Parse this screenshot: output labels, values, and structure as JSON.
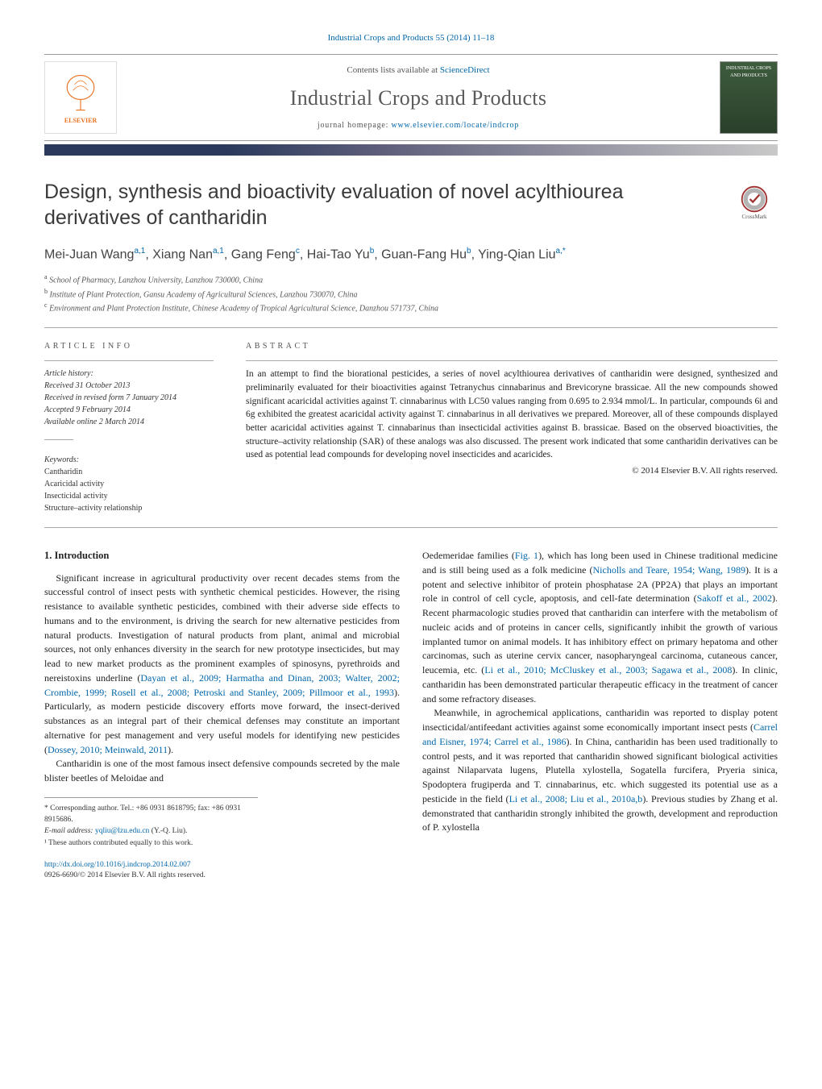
{
  "header": {
    "citation": "Industrial Crops and Products 55 (2014) 11–18",
    "contents_prefix": "Contents lists available at ",
    "contents_link": "ScienceDirect",
    "journal_name": "Industrial Crops and Products",
    "homepage_prefix": "journal homepage: ",
    "homepage_url": "www.elsevier.com/locate/indcrop",
    "publisher": "ELSEVIER",
    "cover_text": "INDUSTRIAL CROPS AND PRODUCTS"
  },
  "title": "Design, synthesis and bioactivity evaluation of novel acylthiourea derivatives of cantharidin",
  "crossmark_label": "CrossMark",
  "authors_html": "Mei-Juan Wang<sup>a,1</sup>, Xiang Nan<sup>a,1</sup>, Gang Feng<sup>c</sup>, Hai-Tao Yu<sup>b</sup>, Guan-Fang Hu<sup>b</sup>, Ying-Qian Liu<sup>a,*</sup>",
  "affiliations": {
    "a": "School of Pharmacy, Lanzhou University, Lanzhou 730000, China",
    "b": "Institute of Plant Protection, Gansu Academy of Agricultural Sciences, Lanzhou 730070, China",
    "c": "Environment and Plant Protection Institute, Chinese Academy of Tropical Agricultural Science, Danzhou 571737, China"
  },
  "article_info": {
    "label": "ARTICLE INFO",
    "history_label": "Article history:",
    "received": "Received 31 October 2013",
    "revised": "Received in revised form 7 January 2014",
    "accepted": "Accepted 9 February 2014",
    "online": "Available online 2 March 2014",
    "keywords_label": "Keywords:",
    "keywords": [
      "Cantharidin",
      "Acaricidal activity",
      "Insecticidal activity",
      "Structure–activity relationship"
    ]
  },
  "abstract": {
    "label": "ABSTRACT",
    "text": "In an attempt to find the biorational pesticides, a series of novel acylthiourea derivatives of cantharidin were designed, synthesized and preliminarily evaluated for their bioactivities against Tetranychus cinnabarinus and Brevicoryne brassicae. All the new compounds showed significant acaricidal activities against T. cinnabarinus with LC50 values ranging from 0.695 to 2.934 mmol/L. In particular, compounds 6i and 6g exhibited the greatest acaricidal activity against T. cinnabarinus in all derivatives we prepared. Moreover, all of these compounds displayed better acaricidal activities against T. cinnabarinus than insecticidal activities against B. brassicae. Based on the observed bioactivities, the structure–activity relationship (SAR) of these analogs was also discussed. The present work indicated that some cantharidin derivatives can be used as potential lead compounds for developing novel insecticides and acaricides.",
    "copyright": "© 2014 Elsevier B.V. All rights reserved."
  },
  "body": {
    "intro_heading": "1.  Introduction",
    "col1_p1": "Significant increase in agricultural productivity over recent decades stems from the successful control of insect pests with synthetic chemical pesticides. However, the rising resistance to available synthetic pesticides, combined with their adverse side effects to humans and to the environment, is driving the search for new alternative pesticides from natural products. Investigation of natural products from plant, animal and microbial sources, not only enhances diversity in the search for new prototype insecticides, but may lead to new market products as the prominent examples of spinosyns, pyrethroids and nereistoxins underline (",
    "col1_p1_ref": "Dayan et al., 2009; Harmatha and Dinan, 2003; Walter, 2002; Crombie, 1999; Rosell et al., 2008; Petroski and Stanley, 2009; Pillmoor et al., 1993",
    "col1_p1_tail": "). Particularly, as modern pesticide discovery efforts move forward, the insect-derived substances as an integral part of their chemical defenses may constitute an important alternative for pest management and very useful models for identifying new pesticides (",
    "col1_p1_ref2": "Dossey, 2010; Meinwald, 2011",
    "col1_p1_close": ").",
    "col1_p2": "Cantharidin is one of the most famous insect defensive compounds secreted by the male blister beetles of Meloidae and",
    "col2_p1_a": "Oedemeridae families (",
    "col2_p1_fig": "Fig. 1",
    "col2_p1_b": "), which has long been used in Chinese traditional medicine and is still being used as a folk medicine (",
    "col2_p1_ref1": "Nicholls and Teare, 1954; Wang, 1989",
    "col2_p1_c": "). It is a potent and selective inhibitor of protein phosphatase 2A (PP2A) that plays an important role in control of cell cycle, apoptosis, and cell-fate determination (",
    "col2_p1_ref2": "Sakoff et al., 2002",
    "col2_p1_d": "). Recent pharmacologic studies proved that cantharidin can interfere with the metabolism of nucleic acids and of proteins in cancer cells, significantly inhibit the growth of various implanted tumor on animal models. It has inhibitory effect on primary hepatoma and other carcinomas, such as uterine cervix cancer, nasopharyngeal carcinoma, cutaneous cancer, leucemia, etc. (",
    "col2_p1_ref3": "Li et al., 2010; McCluskey et al., 2003; Sagawa et al., 2008",
    "col2_p1_e": "). In clinic, cantharidin has been demonstrated particular therapeutic efficacy in the treatment of cancer and some refractory diseases.",
    "col2_p2_a": "Meanwhile, in agrochemical applications, cantharidin was reported to display potent insecticidal/antifeedant activities against some economically important insect pests (",
    "col2_p2_ref1": "Carrel and Eisner, 1974; Carrel et al., 1986",
    "col2_p2_b": "). In China, cantharidin has been used traditionally to control pests, and it was reported that cantharidin showed significant biological activities against Nilaparvata lugens, Plutella xylostella, Sogatella furcifera, Pryeria sinica, Spodoptera frugiperda and T. cinnabarinus, etc. which suggested its potential use as a pesticide in the field (",
    "col2_p2_ref2": "Li et al., 2008; Liu et al., 2010a,b",
    "col2_p2_c": "). Previous studies by Zhang et al. demonstrated that cantharidin strongly inhibited the growth, development and reproduction of P. xylostella"
  },
  "footnotes": {
    "corr_label": "* Corresponding author. Tel.: +86 0931 8618795; fax: +86 0931 8915686.",
    "email_label": "E-mail address: ",
    "email": "yqliu@lzu.edu.cn",
    "email_suffix": " (Y.-Q. Liu).",
    "equal": "¹ These authors contributed equally to this work."
  },
  "doi": {
    "url": "http://dx.doi.org/10.1016/j.indcrop.2014.02.007",
    "issn_line": "0926-6690/© 2014 Elsevier B.V. All rights reserved."
  },
  "colors": {
    "link": "#0066aa",
    "bar_dark": "#2b3a5c",
    "bar_light": "#c9c9c9",
    "elsevier_orange": "#e9711c",
    "cover_green": "#3e5c3e"
  }
}
